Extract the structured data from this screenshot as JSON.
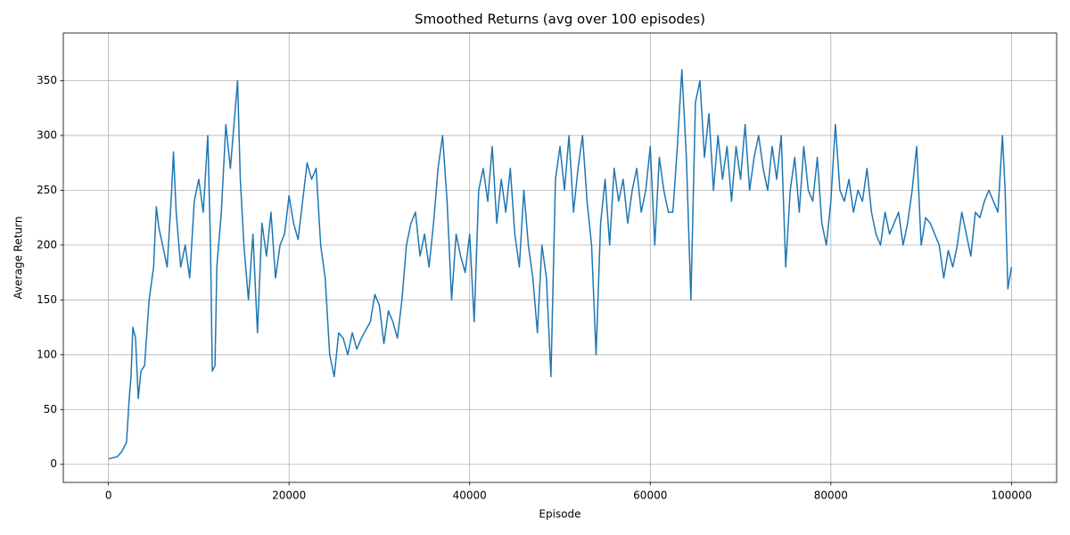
{
  "chart_data": {
    "type": "line",
    "title": "Smoothed Returns (avg over 100 episodes)",
    "x_label": "Episode",
    "y_label": "Average Return",
    "color": "#1f77b4",
    "grid": true,
    "xlim": [
      -5000,
      105000
    ],
    "ylim": [
      -16.5,
      393.5
    ],
    "xticks": [
      0,
      20000,
      40000,
      60000,
      80000,
      100000
    ],
    "yticks": [
      0,
      50,
      100,
      150,
      200,
      250,
      300,
      350
    ],
    "x": [
      0,
      500,
      1000,
      1500,
      2000,
      2300,
      2500,
      2700,
      3000,
      3300,
      3600,
      4000,
      4500,
      5000,
      5300,
      5600,
      6000,
      6500,
      7000,
      7200,
      7500,
      8000,
      8500,
      9000,
      9500,
      10000,
      10500,
      11000,
      11300,
      11500,
      11800,
      12000,
      12500,
      13000,
      13500,
      14000,
      14300,
      14600,
      15000,
      15500,
      16000,
      16500,
      17000,
      17500,
      18000,
      18500,
      19000,
      19500,
      20000,
      20500,
      21000,
      21500,
      22000,
      22500,
      23000,
      23500,
      24000,
      24500,
      25000,
      25500,
      26000,
      26500,
      27000,
      27500,
      28000,
      29000,
      29500,
      30000,
      30500,
      31000,
      31500,
      32000,
      32500,
      33000,
      33500,
      34000,
      34500,
      35000,
      35500,
      36000,
      36500,
      37000,
      37500,
      38000,
      38500,
      39000,
      39500,
      40000,
      40500,
      41000,
      41500,
      42000,
      42500,
      43000,
      43500,
      44000,
      44500,
      45000,
      45500,
      46000,
      46500,
      47000,
      47500,
      48000,
      48500,
      49000,
      49500,
      50000,
      50500,
      51000,
      51500,
      52000,
      52500,
      53000,
      53500,
      54000,
      54500,
      55000,
      55500,
      56000,
      56500,
      57000,
      57500,
      58000,
      58500,
      59000,
      59500,
      60000,
      60500,
      61000,
      61500,
      62000,
      62500,
      63000,
      63500,
      64000,
      64500,
      65000,
      65500,
      66000,
      66500,
      67000,
      67500,
      68000,
      68500,
      69000,
      69500,
      70000,
      70500,
      71000,
      71500,
      72000,
      72500,
      73000,
      73500,
      74000,
      74500,
      75000,
      75500,
      76000,
      76500,
      77000,
      77500,
      78000,
      78500,
      79000,
      79500,
      80000,
      80500,
      81000,
      81500,
      82000,
      82500,
      83000,
      83500,
      84000,
      84500,
      85000,
      85500,
      86000,
      86500,
      87000,
      87500,
      88000,
      88500,
      89000,
      89500,
      90000,
      90500,
      91000,
      91500,
      92000,
      92500,
      93000,
      93500,
      94000,
      94500,
      95000,
      95500,
      96000,
      96500,
      97000,
      97500,
      98000,
      98500,
      99000,
      99300,
      99600,
      100000
    ],
    "values": [
      5,
      6,
      7,
      12,
      20,
      60,
      80,
      125,
      115,
      60,
      85,
      90,
      150,
      180,
      235,
      215,
      200,
      180,
      250,
      285,
      230,
      180,
      200,
      170,
      240,
      260,
      230,
      300,
      200,
      85,
      90,
      180,
      230,
      310,
      270,
      320,
      350,
      260,
      200,
      150,
      210,
      120,
      220,
      190,
      230,
      170,
      200,
      210,
      245,
      220,
      205,
      240,
      275,
      260,
      270,
      200,
      170,
      100,
      80,
      120,
      115,
      100,
      120,
      105,
      115,
      130,
      155,
      145,
      110,
      140,
      130,
      115,
      150,
      200,
      220,
      230,
      190,
      210,
      180,
      220,
      270,
      300,
      240,
      150,
      210,
      190,
      175,
      210,
      130,
      250,
      270,
      240,
      290,
      220,
      260,
      230,
      270,
      210,
      180,
      250,
      200,
      170,
      120,
      200,
      170,
      80,
      260,
      290,
      250,
      300,
      230,
      270,
      300,
      240,
      200,
      100,
      220,
      260,
      200,
      270,
      240,
      260,
      220,
      250,
      270,
      230,
      250,
      290,
      200,
      280,
      250,
      230,
      230,
      290,
      360,
      280,
      150,
      330,
      350,
      280,
      320,
      250,
      300,
      260,
      290,
      240,
      290,
      260,
      310,
      250,
      280,
      300,
      270,
      250,
      290,
      260,
      300,
      180,
      250,
      280,
      230,
      290,
      250,
      240,
      280,
      220,
      200,
      240,
      310,
      250,
      240,
      260,
      230,
      250,
      240,
      270,
      230,
      210,
      200,
      230,
      210,
      220,
      230,
      200,
      220,
      250,
      290,
      200,
      225,
      220,
      210,
      200,
      170,
      195,
      180,
      200,
      230,
      210,
      190,
      230,
      225,
      240,
      250,
      240,
      230,
      300,
      250,
      160,
      180
    ]
  }
}
